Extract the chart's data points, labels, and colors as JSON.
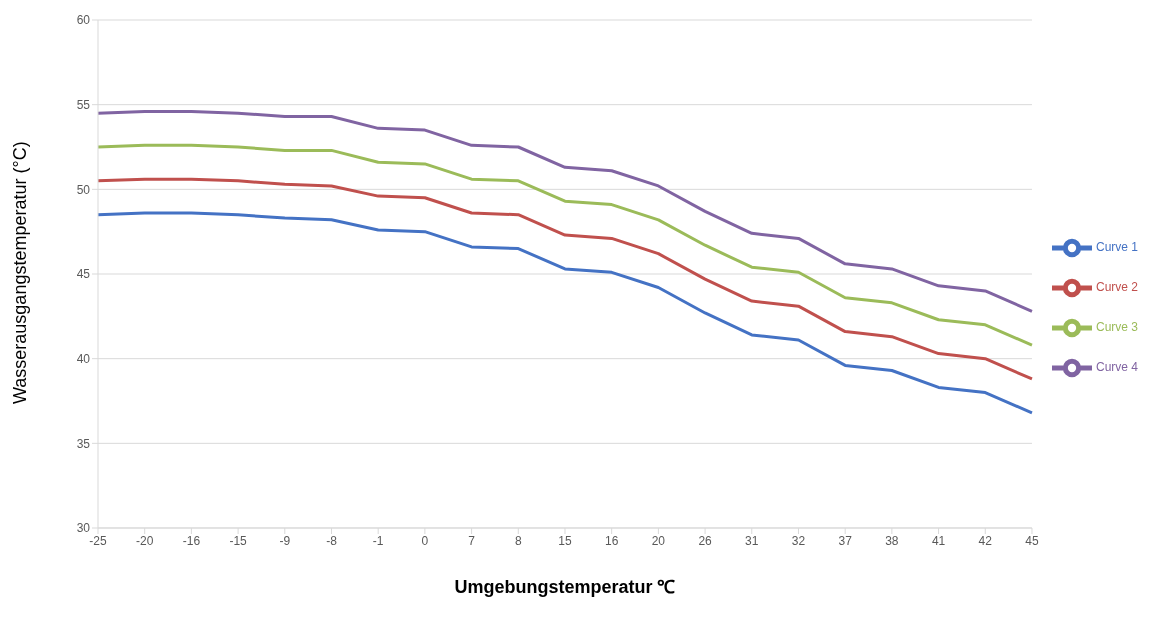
{
  "chart_data": {
    "type": "line",
    "xlabel": "Umgebungstemperatur ℃",
    "ylabel": "Wasserausgangstemperatur (°C)",
    "categories": [
      "-25",
      "-20",
      "-16",
      "-15",
      "-9",
      "-8",
      "-1",
      "0",
      "7",
      "8",
      "15",
      "16",
      "20",
      "26",
      "31",
      "32",
      "37",
      "38",
      "41",
      "42",
      "45"
    ],
    "series": [
      {
        "name": "Curve 1",
        "color": "#4472c4",
        "values": [
          48.5,
          48.6,
          48.6,
          48.5,
          48.3,
          48.2,
          47.6,
          47.5,
          46.6,
          46.5,
          45.3,
          45.1,
          44.2,
          42.7,
          41.4,
          41.1,
          39.6,
          39.3,
          38.3,
          38.0,
          36.8
        ]
      },
      {
        "name": "Curve 2",
        "color": "#c0504d",
        "values": [
          50.5,
          50.6,
          50.6,
          50.5,
          50.3,
          50.2,
          49.6,
          49.5,
          48.6,
          48.5,
          47.3,
          47.1,
          46.2,
          44.7,
          43.4,
          43.1,
          41.6,
          41.3,
          40.3,
          40.0,
          38.8
        ]
      },
      {
        "name": "Curve 3",
        "color": "#9bbb59",
        "values": [
          52.5,
          52.6,
          52.6,
          52.5,
          52.3,
          52.3,
          51.6,
          51.5,
          50.6,
          50.5,
          49.3,
          49.1,
          48.2,
          46.7,
          45.4,
          45.1,
          43.6,
          43.3,
          42.3,
          42.0,
          40.8
        ]
      },
      {
        "name": "Curve 4",
        "color": "#8064a2",
        "values": [
          54.5,
          54.6,
          54.6,
          54.5,
          54.3,
          54.3,
          53.6,
          53.5,
          52.6,
          52.5,
          51.3,
          51.1,
          50.2,
          48.7,
          47.4,
          47.1,
          45.6,
          45.3,
          44.3,
          44.0,
          42.8
        ]
      }
    ],
    "ylim": [
      30,
      60
    ],
    "yticks": [
      30,
      35,
      40,
      45,
      50,
      55,
      60
    ],
    "grid": "y",
    "legend": "right",
    "marker": "none",
    "line_style": "solid"
  }
}
